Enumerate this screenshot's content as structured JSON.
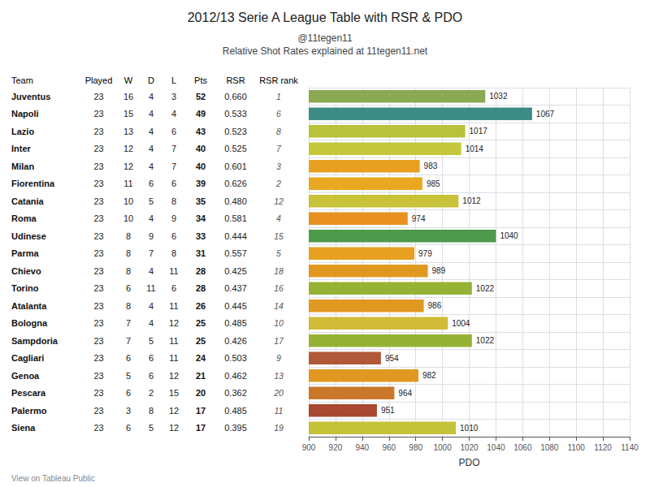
{
  "chart_data": {
    "type": "bar",
    "orientation": "horizontal",
    "title": "2012/13 Serie A League Table with RSR & PDO",
    "subtitle": [
      "@11tegen11",
      "Relative Shot Rates explained at 11tegen11.net"
    ],
    "annotations": [
      "View on Tableau Public"
    ],
    "category_label": "Team",
    "categories": [
      "Juventus",
      "Napoli",
      "Lazio",
      "Inter",
      "Milan",
      "Fiorentina",
      "Catania",
      "Roma",
      "Udinese",
      "Parma",
      "Chievo",
      "Torino",
      "Atalanta",
      "Bologna",
      "Sampdoria",
      "Cagliari",
      "Genoa",
      "Pescara",
      "Palermo",
      "Siena"
    ],
    "values": [
      1032,
      1067,
      1017,
      1014,
      983,
      985,
      1012,
      974,
      1040,
      979,
      989,
      1022,
      986,
      1004,
      1022,
      954,
      982,
      964,
      951,
      1010
    ],
    "colors": [
      "#8aaa52",
      "#3d8b85",
      "#b8c23a",
      "#c4c83a",
      "#e8a020",
      "#e8a820",
      "#c8c238",
      "#e89020",
      "#4e9a4c",
      "#e8a020",
      "#e09820",
      "#96b235",
      "#e09820",
      "#d0bc38",
      "#96b235",
      "#b05838",
      "#e09820",
      "#c87828",
      "#a84830",
      "#c4c238"
    ],
    "data_labels": true,
    "xlabel": "PDO",
    "xlim": [
      900,
      1140
    ],
    "xticks": [
      900,
      920,
      940,
      960,
      980,
      1000,
      1020,
      1040,
      1060,
      1080,
      1100,
      1120,
      1140
    ],
    "grid": true,
    "table": [
      {
        "name": "Played",
        "values": [
          23,
          23,
          23,
          23,
          23,
          23,
          23,
          23,
          23,
          23,
          23,
          23,
          23,
          23,
          23,
          23,
          23,
          23,
          23,
          23
        ]
      },
      {
        "name": "W",
        "values": [
          16,
          15,
          13,
          12,
          12,
          11,
          10,
          10,
          8,
          8,
          8,
          6,
          8,
          7,
          7,
          6,
          5,
          6,
          3,
          6
        ]
      },
      {
        "name": "D",
        "values": [
          4,
          4,
          4,
          4,
          4,
          6,
          5,
          4,
          9,
          7,
          4,
          11,
          4,
          4,
          5,
          6,
          6,
          2,
          8,
          5
        ]
      },
      {
        "name": "L",
        "values": [
          3,
          4,
          6,
          7,
          7,
          6,
          8,
          9,
          6,
          8,
          11,
          6,
          11,
          12,
          11,
          11,
          12,
          15,
          12,
          12
        ]
      },
      {
        "name": "Pts",
        "values": [
          52,
          49,
          43,
          40,
          40,
          39,
          35,
          34,
          33,
          31,
          28,
          28,
          26,
          25,
          25,
          24,
          21,
          20,
          17,
          17
        ]
      },
      {
        "name": "RSR",
        "values": [
          0.66,
          0.533,
          0.523,
          0.525,
          0.601,
          0.626,
          0.48,
          0.581,
          0.444,
          0.557,
          0.425,
          0.437,
          0.445,
          0.485,
          0.426,
          0.503,
          0.462,
          0.362,
          0.485,
          0.395
        ],
        "value_labels": [
          "0.660",
          "0.533",
          "0.523",
          "0.525",
          "0.601",
          "0.626",
          "0.480",
          "0.581",
          "0.444",
          "0.557",
          "0.425",
          "0.437",
          "0.445",
          "0.485",
          "0.426",
          "0.503",
          "0.462",
          "0.362",
          "0.485",
          "0.395"
        ]
      },
      {
        "name": "RSR rank",
        "values": [
          1,
          6,
          8,
          7,
          3,
          2,
          12,
          4,
          15,
          5,
          18,
          16,
          14,
          10,
          17,
          9,
          13,
          20,
          11,
          19
        ]
      }
    ]
  }
}
